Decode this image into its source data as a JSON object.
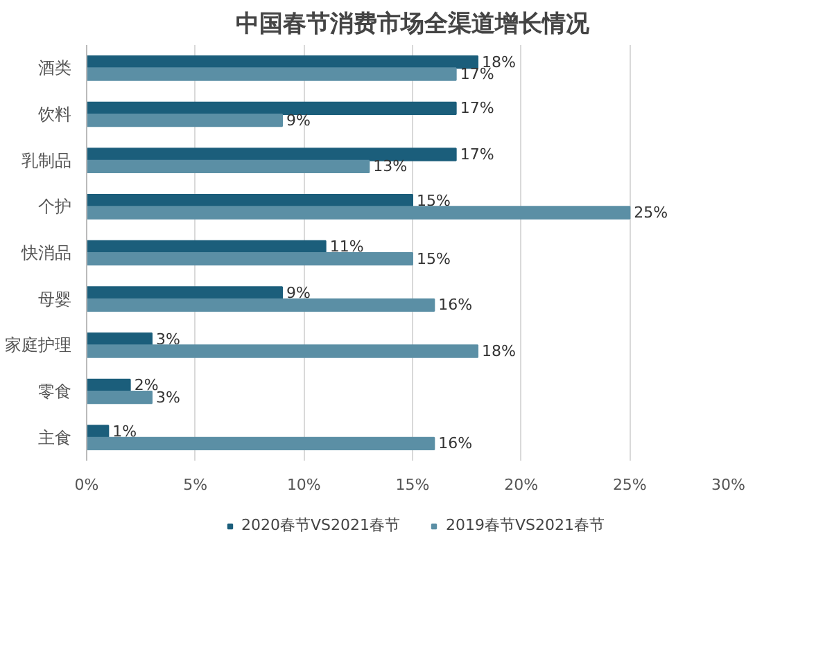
{
  "chart_data": {
    "type": "bar",
    "orientation": "horizontal",
    "title": "中国春节消费市场全渠道增长情况",
    "categories": [
      "酒类",
      "饮料",
      "乳制品",
      "个护",
      "快消品",
      "母婴",
      "家庭护理",
      "零食",
      "主食"
    ],
    "series": [
      {
        "name": "2020春节VS2021春节",
        "color": "#1b5e7b",
        "values": [
          18,
          17,
          17,
          15,
          11,
          9,
          3,
          2,
          1
        ],
        "value_labels": [
          "18%",
          "17%",
          "17%",
          "15%",
          "11%",
          "9%",
          "3%",
          "2%",
          "1%"
        ]
      },
      {
        "name": "2019春节VS2021春节",
        "color": "#5b8fa5",
        "values": [
          17,
          9,
          13,
          25,
          15,
          16,
          18,
          3,
          16
        ],
        "value_labels": [
          "17%",
          "9%",
          "13%",
          "25%",
          "15%",
          "16%",
          "18%",
          "3%",
          "16%"
        ]
      }
    ],
    "xlim": [
      0,
      30
    ],
    "xticks": [
      {
        "value": 0,
        "label": "0%"
      },
      {
        "value": 5,
        "label": "5%"
      },
      {
        "value": 10,
        "label": "10%"
      },
      {
        "value": 15,
        "label": "15%"
      },
      {
        "value": 20,
        "label": "20%"
      },
      {
        "value": 25,
        "label": "25%"
      },
      {
        "value": 30,
        "label": "30%"
      }
    ],
    "grid": "x",
    "legend": "bottom"
  }
}
